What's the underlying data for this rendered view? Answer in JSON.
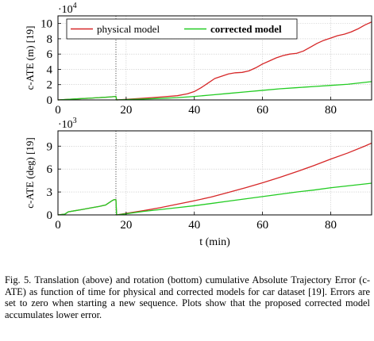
{
  "caption": "Fig. 5.   Translation (above) and rotation (bottom) cumulative Absolute Trajectory Error (c-ATE) as function of time for physical and corrected models for car dataset [19]. Errors are set to zero when starting a new sequence. Plots show that the proposed corrected model accumulates lower error.",
  "chart_data": [
    {
      "type": "line",
      "ylabel": "c-ATE (m) [19]",
      "xlabel": "",
      "scale_label": "·10",
      "scale_exp": "4",
      "xlim": [
        0,
        92
      ],
      "ylim": [
        0,
        11
      ],
      "xticks": [
        0,
        20,
        40,
        60,
        80
      ],
      "yticks": [
        0,
        2,
        4,
        6,
        8,
        10
      ],
      "grid": true,
      "legend": "top-left",
      "sequence_boundaries": [
        17
      ],
      "series": [
        {
          "name": "physical model",
          "color": "#d62728",
          "x": [
            0,
            3,
            6,
            9,
            12,
            15,
            17,
            17.2,
            20,
            25,
            30,
            35,
            38,
            40,
            42,
            44,
            46,
            48,
            50,
            52,
            54,
            56,
            58,
            60,
            62,
            64,
            66,
            68,
            70,
            72,
            74,
            76,
            78,
            80,
            82,
            84,
            86,
            88,
            90,
            92
          ],
          "y": [
            0,
            0.08,
            0.15,
            0.22,
            0.3,
            0.38,
            0.45,
            0,
            0.08,
            0.22,
            0.38,
            0.55,
            0.8,
            1.1,
            1.6,
            2.2,
            2.8,
            3.1,
            3.4,
            3.55,
            3.6,
            3.8,
            4.2,
            4.7,
            5.1,
            5.5,
            5.8,
            6.0,
            6.1,
            6.4,
            6.9,
            7.4,
            7.8,
            8.1,
            8.4,
            8.6,
            8.9,
            9.3,
            9.8,
            10.2
          ]
        },
        {
          "name": "corrected model",
          "color": "#22cc22",
          "x": [
            0,
            3,
            6,
            9,
            12,
            15,
            17,
            17.2,
            20,
            25,
            30,
            35,
            40,
            45,
            50,
            55,
            60,
            65,
            70,
            75,
            80,
            85,
            90,
            92
          ],
          "y": [
            0,
            0.08,
            0.15,
            0.22,
            0.3,
            0.38,
            0.45,
            0,
            0.05,
            0.12,
            0.2,
            0.3,
            0.45,
            0.65,
            0.85,
            1.05,
            1.25,
            1.45,
            1.6,
            1.75,
            1.9,
            2.05,
            2.3,
            2.4
          ]
        }
      ]
    },
    {
      "type": "line",
      "ylabel": "c-ATE (deg) [19]",
      "xlabel": "t (min)",
      "scale_label": "·10",
      "scale_exp": "3",
      "xlim": [
        0,
        92
      ],
      "ylim": [
        0,
        11
      ],
      "xticks": [
        0,
        20,
        40,
        60,
        80
      ],
      "yticks": [
        0,
        3,
        6,
        9
      ],
      "grid": true,
      "sequence_boundaries": [
        17
      ],
      "series": [
        {
          "name": "physical model",
          "color": "#d62728",
          "x": [
            0,
            2,
            3,
            5,
            7,
            10,
            12,
            14,
            15,
            16,
            16.5,
            17,
            17.2,
            20,
            25,
            30,
            35,
            40,
            45,
            50,
            55,
            60,
            65,
            70,
            75,
            80,
            85,
            90,
            92
          ],
          "y": [
            0,
            0.1,
            0.4,
            0.55,
            0.7,
            0.95,
            1.1,
            1.3,
            1.6,
            1.9,
            2.0,
            2.0,
            0,
            0.2,
            0.55,
            0.95,
            1.4,
            1.85,
            2.35,
            2.95,
            3.55,
            4.2,
            4.9,
            5.65,
            6.45,
            7.3,
            8.1,
            9.0,
            9.4
          ]
        },
        {
          "name": "corrected model",
          "color": "#22cc22",
          "x": [
            0,
            2,
            3,
            5,
            7,
            10,
            12,
            14,
            15,
            16,
            16.5,
            17,
            17.2,
            20,
            25,
            30,
            35,
            40,
            45,
            50,
            55,
            60,
            65,
            70,
            75,
            80,
            85,
            90,
            92
          ],
          "y": [
            0,
            0.1,
            0.4,
            0.55,
            0.7,
            0.95,
            1.1,
            1.3,
            1.6,
            1.9,
            2.0,
            2.0,
            0,
            0.15,
            0.45,
            0.7,
            0.95,
            1.2,
            1.5,
            1.8,
            2.1,
            2.4,
            2.7,
            3.0,
            3.25,
            3.55,
            3.8,
            4.05,
            4.15
          ]
        }
      ]
    }
  ]
}
